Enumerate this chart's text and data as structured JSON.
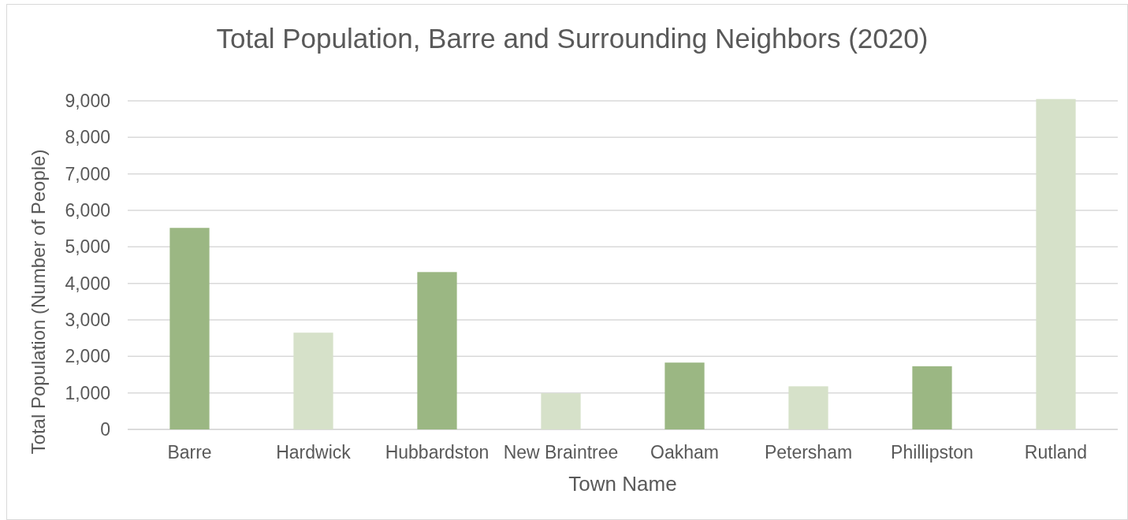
{
  "chart_data": {
    "type": "bar",
    "title": "Total Population, Barre and Surrounding Neighbors (2020)",
    "xlabel": "Town Name",
    "ylabel": "Total Population (Number of People)",
    "categories": [
      "Barre",
      "Hardwick",
      "Hubbardston",
      "New Braintree",
      "Oakham",
      "Petersham",
      "Phillipston",
      "Rutland"
    ],
    "values": [
      5520,
      2650,
      4310,
      990,
      1830,
      1180,
      1730,
      9050
    ],
    "colors": [
      "#9bb783",
      "#d6e1c9",
      "#9bb783",
      "#d6e1c9",
      "#9bb783",
      "#d6e1c9",
      "#9bb783",
      "#d6e1c9"
    ],
    "ylim": [
      0,
      9050
    ],
    "yticks": [
      {
        "value": 0,
        "label": "0"
      },
      {
        "value": 1000,
        "label": "1,000"
      },
      {
        "value": 2000,
        "label": "2,000"
      },
      {
        "value": 3000,
        "label": "3,000"
      },
      {
        "value": 4000,
        "label": "4,000"
      },
      {
        "value": 5000,
        "label": "5,000"
      },
      {
        "value": 6000,
        "label": "6,000"
      },
      {
        "value": 7000,
        "label": "7,000"
      },
      {
        "value": 8000,
        "label": "8,000"
      },
      {
        "value": 9000,
        "label": "9,000"
      }
    ],
    "grid": "y"
  }
}
